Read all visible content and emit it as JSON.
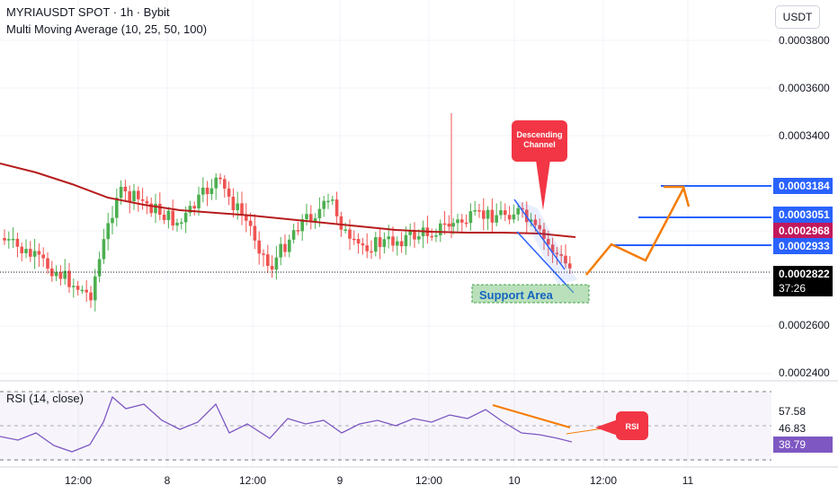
{
  "header": {
    "symbol_line": "MYRIAUSDT SPOT · 1h · Bybit",
    "indicator": "Multi Moving Average (10, 25, 50, 100)",
    "currency": "USDT"
  },
  "price_axis": {
    "labels": [
      "0.0003800",
      "0.0003600",
      "0.0003400",
      "0.0002600",
      "0.0002400"
    ]
  },
  "levels": [
    {
      "price": "0.0003184",
      "color": "#2962ff"
    },
    {
      "price": "0.0003051",
      "color": "#2962ff"
    },
    {
      "price": "0.0002933",
      "color": "#2962ff"
    }
  ],
  "moving_average_tag": {
    "value": "0.0002968",
    "color": "#c2185b"
  },
  "current_price_tag": {
    "value": "0.0002822",
    "countdown": "37:26"
  },
  "annotations": {
    "channel": [
      "Descending",
      "Channel"
    ],
    "support": "Support Area",
    "rsi_callout": "RSI"
  },
  "rsi": {
    "title": "RSI (14, close)",
    "levels": [
      "57.58",
      "46.83"
    ],
    "value": "38.79",
    "color": "#7e57c2"
  },
  "time_axis": [
    "12:00",
    "8",
    "12:00",
    "9",
    "12:00",
    "10",
    "12:00",
    "11"
  ],
  "colors": {
    "up": "#26a69a",
    "up_candle": "#4caf50",
    "down": "#ef5350",
    "ma": "#b71c1c",
    "projection": "#f57c00",
    "support_fill": "#81c784"
  }
}
